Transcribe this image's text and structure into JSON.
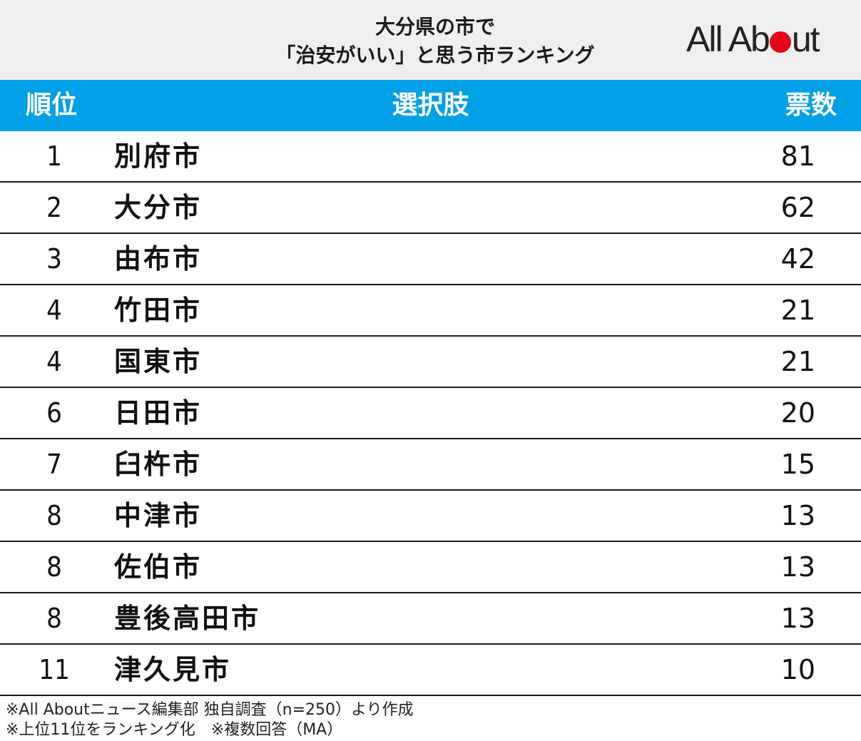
{
  "title": {
    "line1": "大分県の市で",
    "line2": "「治安がいい」と思う市ランキング"
  },
  "logo": {
    "text_before": "All Ab",
    "text_after": "ut",
    "dot_color": "#e2001a"
  },
  "colors": {
    "header_band": "#efefef",
    "table_header": "#00a0e6"
  },
  "table": {
    "headers": {
      "rank": "順位",
      "choice": "選択肢",
      "votes": "票数"
    },
    "rows": [
      {
        "rank": "1",
        "name": "別府市",
        "votes": "81"
      },
      {
        "rank": "2",
        "name": "大分市",
        "votes": "62"
      },
      {
        "rank": "3",
        "name": "由布市",
        "votes": "42"
      },
      {
        "rank": "4",
        "name": "竹田市",
        "votes": "21"
      },
      {
        "rank": "4",
        "name": "国東市",
        "votes": "21"
      },
      {
        "rank": "6",
        "name": "日田市",
        "votes": "20"
      },
      {
        "rank": "7",
        "name": "臼杵市",
        "votes": "15"
      },
      {
        "rank": "8",
        "name": "中津市",
        "votes": "13"
      },
      {
        "rank": "8",
        "name": "佐伯市",
        "votes": "13"
      },
      {
        "rank": "8",
        "name": "豊後高田市",
        "votes": "13"
      },
      {
        "rank": "11",
        "name": "津久見市",
        "votes": "10"
      }
    ]
  },
  "footnotes": {
    "line1": "※All Aboutニュース編集部 独自調査（n=250）より作成",
    "line2": "※上位11位をランキング化　※複数回答（MA）"
  }
}
